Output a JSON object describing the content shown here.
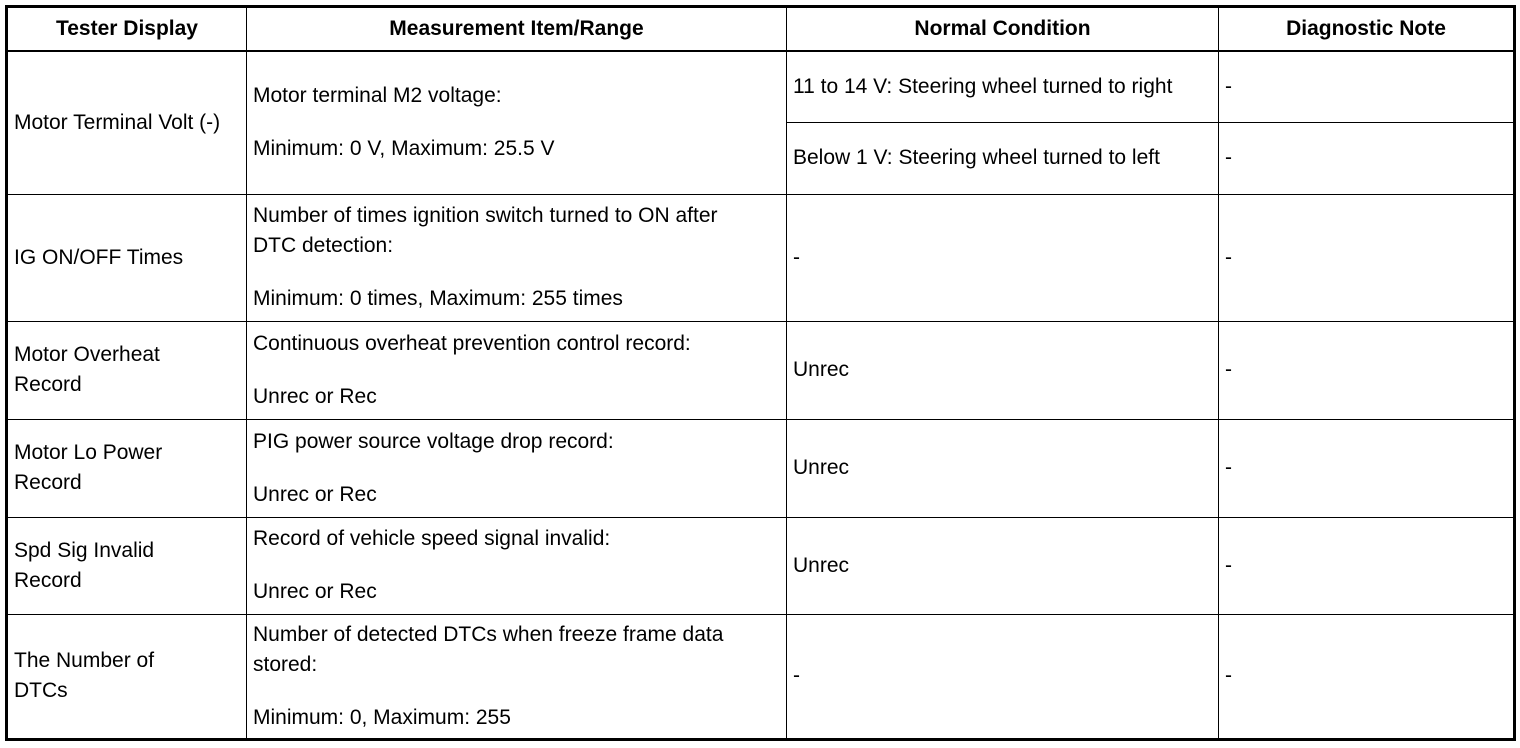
{
  "headers": [
    "Tester Display",
    "Measurement Item/Range",
    "Normal Condition",
    "Diagnostic Note"
  ],
  "rows": [
    {
      "tester_display": "Motor Terminal Volt (-)",
      "measurement": [
        "Motor terminal M2 voltage:",
        "Minimum: 0 V, Maximum: 25.5 V"
      ],
      "conditions": [
        {
          "normal": "11 to 14 V: Steering wheel turned to right",
          "note": "-"
        },
        {
          "normal": "Below 1 V: Steering wheel turned to left",
          "note": "-"
        }
      ]
    },
    {
      "tester_display": "IG ON/OFF Times",
      "measurement": [
        "Number of times ignition switch turned to ON after DTC detection:",
        "Minimum: 0 times, Maximum: 255 times"
      ],
      "normal": "-",
      "note": "-"
    },
    {
      "tester_display": "Motor Overheat Record",
      "measurement": [
        "Continuous overheat prevention control record:",
        "Unrec or Rec"
      ],
      "normal": "Unrec",
      "note": "-"
    },
    {
      "tester_display": "Motor Lo Power Record",
      "measurement": [
        "PIG power source voltage drop record:",
        "Unrec or Rec"
      ],
      "normal": "Unrec",
      "note": "-"
    },
    {
      "tester_display": "Spd Sig Invalid Record",
      "measurement": [
        "Record of vehicle speed signal invalid:",
        "Unrec or Rec"
      ],
      "normal": "Unrec",
      "note": "-"
    },
    {
      "tester_display": "The Number of DTCs",
      "measurement": [
        "Number of detected DTCs when freeze frame data stored:",
        "Minimum: 0, Maximum: 255"
      ],
      "normal": "-",
      "note": "-"
    }
  ]
}
